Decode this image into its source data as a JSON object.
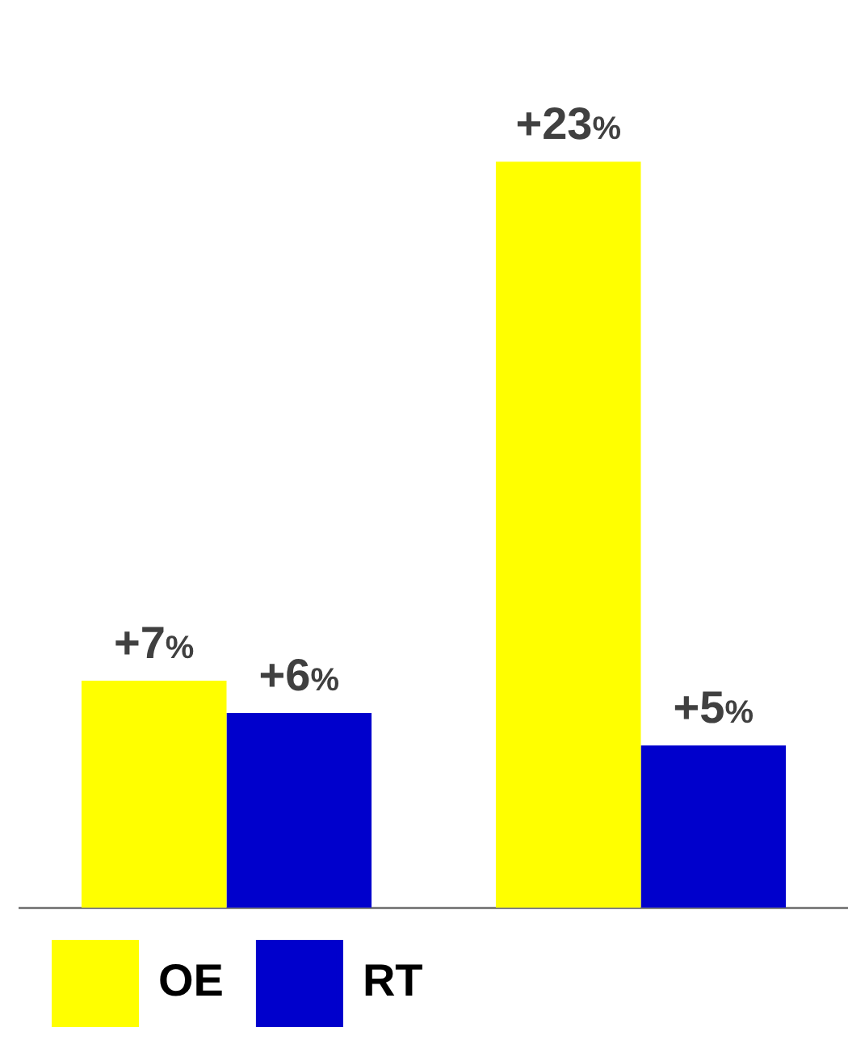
{
  "chart_data": {
    "type": "bar",
    "categories": [
      null,
      null
    ],
    "series": [
      {
        "name": "OE",
        "color": "#ffff00",
        "values": [
          7,
          23
        ],
        "value_labels": [
          "+7%",
          "+23%"
        ]
      },
      {
        "name": "RT",
        "color": "#0000cc",
        "values": [
          6,
          5
        ],
        "value_labels": [
          "+6%",
          "+5%"
        ]
      }
    ],
    "tick_labels": false,
    "grid": false,
    "legend": "bottom left"
  }
}
